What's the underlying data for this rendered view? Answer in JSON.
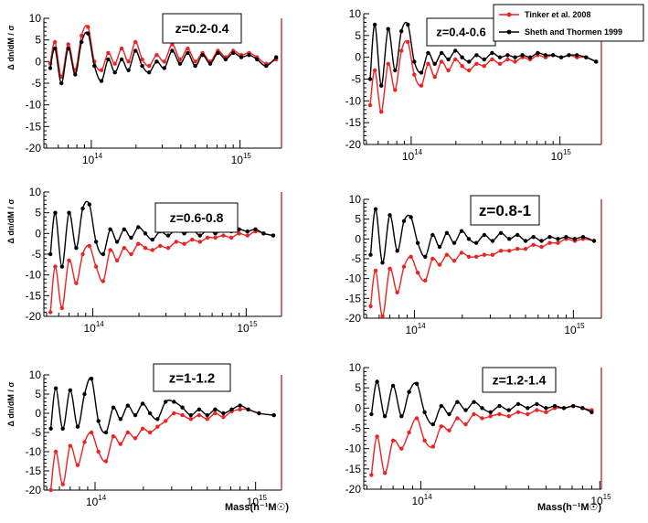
{
  "figure": {
    "y_label": "Δ dn/dM / σ",
    "x_label": "Mass(h⁻¹M☉)",
    "y_ticks": [
      "10",
      "5",
      "0",
      "-5",
      "-10",
      "-15",
      "-20"
    ],
    "x_tick_1e14": "10",
    "x_tick_1e14_exp": "14",
    "x_tick_1e15": "10",
    "x_tick_1e15_exp": "15"
  },
  "legend": {
    "entries": [
      {
        "label": "Tinker et al. 2008",
        "color": "#ee2222"
      },
      {
        "label": "Sheth and Thormen 1999",
        "color": "#000000"
      }
    ]
  },
  "chart_data": [
    {
      "type": "line",
      "panel_label": "z=0.2-0.4",
      "x_scale": "log",
      "xlim": [
        48000000000000.0,
        1900000000000000.0
      ],
      "ylim": [
        -20,
        10
      ],
      "x": [
        53000000000000.0,
        57000000000000.0,
        63000000000000.0,
        70000000000000.0,
        78000000000000.0,
        86000000000000.0,
        95000000000000.0,
        105000000000000.0,
        117000000000000.0,
        130000000000000.0,
        144000000000000.0,
        160000000000000.0,
        178000000000000.0,
        198000000000000.0,
        220000000000000.0,
        245000000000000.0,
        275000000000000.0,
        310000000000000.0,
        350000000000000.0,
        395000000000000.0,
        445000000000000.0,
        500000000000000.0,
        560000000000000.0,
        630000000000000.0,
        710000000000000.0,
        800000000000000.0,
        900000000000000.0,
        1020000000000000.0,
        1150000000000000.0,
        1300000000000000.0,
        1500000000000000.0,
        1750000000000000.0
      ],
      "series": [
        {
          "name": "Tinker et al. 2008",
          "color": "#ee2222",
          "y": [
            -0.5,
            4.5,
            -3.5,
            4.0,
            -2.0,
            6.0,
            8.0,
            0.0,
            -2.0,
            2.0,
            -0.5,
            3.0,
            0.0,
            4.5,
            0.5,
            -1.0,
            1.5,
            0.0,
            4.0,
            0.5,
            3.0,
            0.0,
            2.0,
            0.0,
            2.5,
            1.0,
            2.5,
            1.5,
            2.0,
            1.0,
            -0.5,
            0.5
          ]
        },
        {
          "name": "Sheth and Thormen 1999",
          "color": "#000000",
          "y": [
            -1.5,
            3.0,
            -5.0,
            3.0,
            -3.0,
            4.5,
            6.5,
            -1.0,
            -4.5,
            0.5,
            -2.5,
            0.5,
            -2.0,
            2.5,
            -1.0,
            -2.5,
            0.0,
            -1.5,
            2.5,
            -0.5,
            2.0,
            -1.0,
            1.5,
            -0.5,
            2.0,
            0.5,
            2.0,
            1.0,
            1.5,
            0.5,
            -1.0,
            1.0
          ]
        }
      ]
    },
    {
      "type": "line",
      "panel_label": "z=0.4-0.6",
      "x_scale": "log",
      "xlim": [
        48000000000000.0,
        1900000000000000.0
      ],
      "ylim": [
        -20,
        10
      ],
      "x": [
        53000000000000.0,
        57000000000000.0,
        63000000000000.0,
        70000000000000.0,
        78000000000000.0,
        86000000000000.0,
        95000000000000.0,
        105000000000000.0,
        117000000000000.0,
        130000000000000.0,
        144000000000000.0,
        160000000000000.0,
        178000000000000.0,
        198000000000000.0,
        220000000000000.0,
        245000000000000.0,
        275000000000000.0,
        310000000000000.0,
        350000000000000.0,
        395000000000000.0,
        445000000000000.0,
        500000000000000.0,
        560000000000000.0,
        630000000000000.0,
        710000000000000.0,
        800000000000000.0,
        900000000000000.0,
        1020000000000000.0,
        1150000000000000.0,
        1300000000000000.0,
        1500000000000000.0,
        1750000000000000.0
      ],
      "series": [
        {
          "name": "Tinker et al. 2008",
          "color": "#ee2222",
          "y": [
            -11.0,
            -3.0,
            -12.5,
            -1.5,
            -7.5,
            1.5,
            3.5,
            -4.0,
            -6.5,
            -1.5,
            -4.5,
            -1.0,
            -3.0,
            -0.5,
            -2.0,
            -3.0,
            -1.5,
            -2.0,
            -0.5,
            -1.5,
            -0.5,
            -1.0,
            0.0,
            -0.5,
            0.5,
            0.0,
            0.5,
            0.0,
            0.5,
            0.0,
            0.0,
            -1.0
          ]
        },
        {
          "name": "Sheth and Thormen 1999",
          "color": "#000000",
          "y": [
            -5.0,
            7.5,
            -6.5,
            6.5,
            -3.0,
            6.0,
            7.5,
            -1.0,
            -3.5,
            1.0,
            -1.5,
            1.0,
            -0.5,
            1.5,
            0.0,
            -1.0,
            0.5,
            -0.5,
            1.0,
            0.0,
            0.5,
            0.0,
            0.5,
            0.0,
            1.0,
            0.5,
            0.5,
            0.0,
            0.5,
            0.5,
            0.0,
            -1.0
          ]
        }
      ]
    },
    {
      "type": "line",
      "panel_label": "z=0.6-0.8",
      "x_scale": "log",
      "xlim": [
        48000000000000.0,
        1700000000000000.0
      ],
      "ylim": [
        -20,
        10
      ],
      "x": [
        53000000000000.0,
        57000000000000.0,
        63000000000000.0,
        70000000000000.0,
        78000000000000.0,
        86000000000000.0,
        95000000000000.0,
        105000000000000.0,
        117000000000000.0,
        130000000000000.0,
        144000000000000.0,
        160000000000000.0,
        178000000000000.0,
        198000000000000.0,
        220000000000000.0,
        245000000000000.0,
        275000000000000.0,
        310000000000000.0,
        350000000000000.0,
        395000000000000.0,
        445000000000000.0,
        500000000000000.0,
        560000000000000.0,
        630000000000000.0,
        710000000000000.0,
        800000000000000.0,
        900000000000000.0,
        1020000000000000.0,
        1150000000000000.0,
        1300000000000000.0,
        1500000000000000.0
      ],
      "series": [
        {
          "name": "Tinker et al. 2008",
          "color": "#ee2222",
          "y": [
            -19.0,
            -8.0,
            -18.0,
            -6.5,
            -12.0,
            -5.0,
            -3.0,
            -8.0,
            -11.5,
            -4.0,
            -6.5,
            -3.5,
            -5.0,
            -2.5,
            -3.5,
            -4.0,
            -3.0,
            -3.5,
            -2.0,
            -2.5,
            -1.5,
            -2.0,
            -1.0,
            -1.0,
            -0.5,
            -1.0,
            0.0,
            -0.5,
            0.5,
            0.0,
            -0.5
          ]
        },
        {
          "name": "Sheth and Thormen 1999",
          "color": "#000000",
          "y": [
            -5.0,
            5.0,
            -8.0,
            5.0,
            -3.5,
            6.0,
            7.0,
            -2.0,
            -5.0,
            1.0,
            -2.0,
            1.0,
            -1.0,
            1.5,
            0.0,
            -1.5,
            0.5,
            -0.5,
            1.0,
            0.0,
            1.0,
            -0.5,
            1.0,
            0.0,
            1.0,
            0.5,
            1.0,
            0.5,
            1.0,
            0.0,
            -0.5
          ]
        }
      ]
    },
    {
      "type": "line",
      "panel_label": "z=0.8-1",
      "x_scale": "log",
      "xlim": [
        48000000000000.0,
        1500000000000000.0
      ],
      "ylim": [
        -20,
        10
      ],
      "x": [
        53000000000000.0,
        57000000000000.0,
        63000000000000.0,
        70000000000000.0,
        78000000000000.0,
        86000000000000.0,
        95000000000000.0,
        105000000000000.0,
        117000000000000.0,
        130000000000000.0,
        144000000000000.0,
        160000000000000.0,
        178000000000000.0,
        198000000000000.0,
        220000000000000.0,
        245000000000000.0,
        275000000000000.0,
        310000000000000.0,
        350000000000000.0,
        395000000000000.0,
        445000000000000.0,
        500000000000000.0,
        560000000000000.0,
        630000000000000.0,
        710000000000000.0,
        800000000000000.0,
        900000000000000.0,
        1020000000000000.0,
        1150000000000000.0,
        1350000000000000.0
      ],
      "series": [
        {
          "name": "Tinker et al. 2008",
          "color": "#ee2222",
          "y": [
            -17.0,
            -8.0,
            -19.5,
            -7.5,
            -13.5,
            -7.0,
            -4.5,
            -8.5,
            -10.5,
            -5.0,
            -6.5,
            -4.0,
            -5.5,
            -3.5,
            -4.5,
            -4.5,
            -4.0,
            -4.0,
            -3.0,
            -3.0,
            -2.5,
            -2.5,
            -1.5,
            -2.0,
            -1.0,
            -1.0,
            0.0,
            -0.5,
            0.0,
            -0.5
          ]
        },
        {
          "name": "Sheth and Thormen 1999",
          "color": "#000000",
          "y": [
            -4.0,
            7.5,
            -6.0,
            6.0,
            -3.0,
            4.5,
            5.5,
            -1.0,
            -4.5,
            1.0,
            -2.0,
            1.5,
            -1.0,
            2.0,
            0.0,
            -1.0,
            1.0,
            -0.5,
            1.5,
            0.0,
            1.0,
            -0.5,
            0.5,
            -0.5,
            0.5,
            0.0,
            0.5,
            0.0,
            0.5,
            -0.5
          ]
        }
      ]
    },
    {
      "type": "line",
      "panel_label": "z=1-1.2",
      "x_scale": "log",
      "xlim": [
        48000000000000.0,
        1450000000000000.0
      ],
      "ylim": [
        -20,
        10
      ],
      "x": [
        53000000000000.0,
        57000000000000.0,
        63000000000000.0,
        70000000000000.0,
        78000000000000.0,
        86000000000000.0,
        95000000000000.0,
        105000000000000.0,
        117000000000000.0,
        130000000000000.0,
        144000000000000.0,
        160000000000000.0,
        178000000000000.0,
        198000000000000.0,
        220000000000000.0,
        245000000000000.0,
        275000000000000.0,
        310000000000000.0,
        350000000000000.0,
        395000000000000.0,
        445000000000000.0,
        500000000000000.0,
        560000000000000.0,
        630000000000000.0,
        710000000000000.0,
        800000000000000.0,
        900000000000000.0,
        1050000000000000.0,
        1300000000000000.0
      ],
      "series": [
        {
          "name": "Tinker et al. 2008",
          "color": "#ee2222",
          "y": [
            -20.0,
            -10.0,
            -18.5,
            -8.5,
            -13.5,
            -7.5,
            -5.0,
            -10.0,
            -12.5,
            -6.0,
            -8.0,
            -5.0,
            -6.5,
            -4.0,
            -5.0,
            -3.5,
            -2.0,
            0.0,
            -0.5,
            -1.5,
            -0.5,
            -1.5,
            0.0,
            -1.0,
            0.5,
            1.0,
            1.0,
            0.0,
            -0.5
          ]
        },
        {
          "name": "Sheth and Thormen 1999",
          "color": "#000000",
          "y": [
            -4.0,
            6.5,
            -4.0,
            6.0,
            -3.5,
            5.0,
            9.0,
            -2.0,
            -5.0,
            1.5,
            -1.5,
            2.0,
            -0.5,
            2.5,
            0.0,
            -1.5,
            3.0,
            3.0,
            1.5,
            -0.5,
            1.0,
            -0.5,
            1.0,
            0.0,
            1.0,
            2.0,
            1.0,
            0.0,
            -0.5
          ]
        }
      ]
    },
    {
      "type": "line",
      "panel_label": "z=1.2-1.4",
      "x_scale": "log",
      "xlim": [
        48000000000000.0,
        1020000000000000.0
      ],
      "ylim": [
        -20,
        10
      ],
      "x": [
        53000000000000.0,
        57000000000000.0,
        63000000000000.0,
        70000000000000.0,
        78000000000000.0,
        86000000000000.0,
        95000000000000.0,
        105000000000000.0,
        117000000000000.0,
        130000000000000.0,
        144000000000000.0,
        160000000000000.0,
        178000000000000.0,
        198000000000000.0,
        220000000000000.0,
        245000000000000.0,
        275000000000000.0,
        310000000000000.0,
        350000000000000.0,
        395000000000000.0,
        445000000000000.0,
        500000000000000.0,
        560000000000000.0,
        630000000000000.0,
        710000000000000.0,
        800000000000000.0,
        900000000000000.0
      ],
      "series": [
        {
          "name": "Tinker et al. 2008",
          "color": "#ee2222",
          "y": [
            -16.5,
            -7.0,
            -16.0,
            -8.0,
            -10.0,
            -6.0,
            -2.5,
            -8.0,
            -9.5,
            -4.5,
            -5.5,
            -2.5,
            -4.0,
            -1.5,
            -2.5,
            -2.0,
            -1.5,
            -2.0,
            -1.0,
            -1.5,
            -0.5,
            -1.0,
            0.0,
            0.0,
            0.5,
            0.0,
            -0.5
          ]
        },
        {
          "name": "Sheth and Thormen 1999",
          "color": "#000000",
          "y": [
            -1.5,
            6.5,
            -2.0,
            5.5,
            -2.0,
            4.0,
            6.0,
            -1.0,
            -4.0,
            0.5,
            -1.5,
            1.5,
            -0.5,
            1.5,
            0.0,
            -1.0,
            0.5,
            -0.5,
            1.0,
            0.0,
            1.0,
            0.0,
            0.5,
            0.0,
            0.5,
            0.0,
            -1.0
          ]
        }
      ]
    }
  ]
}
